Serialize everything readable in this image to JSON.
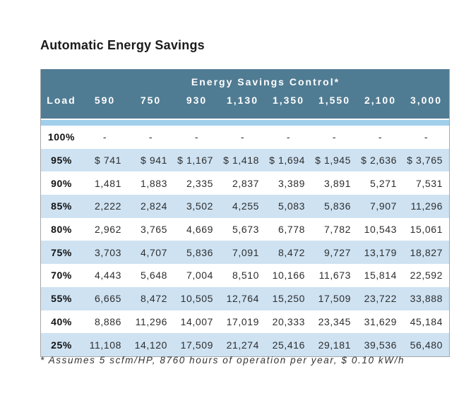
{
  "title": "Automatic Energy Savings",
  "colors": {
    "header_teal": "#507c93",
    "band_blue": "#a0cfec",
    "row_stripe_blue": "#cee2f2",
    "border_gray": "#a6a6a6",
    "header_text": "#ffffff",
    "body_text": "#2e2e2e"
  },
  "chart_data": {
    "type": "table",
    "title": "Automatic Energy Savings",
    "group_header": "Energy Savings Control*",
    "columns": [
      "Load",
      "590",
      "750",
      "930",
      "1,130",
      "1,350",
      "1,550",
      "2,100",
      "3,000"
    ],
    "rows": [
      {
        "load": "100%",
        "values": [
          "-",
          "-",
          "-",
          "-",
          "-",
          "-",
          "-",
          "-"
        ]
      },
      {
        "load": "95%",
        "values": [
          "$ 741",
          "$ 941",
          "$ 1,167",
          "$ 1,418",
          "$ 1,694",
          "$ 1,945",
          "$ 2,636",
          "$ 3,765"
        ]
      },
      {
        "load": "90%",
        "values": [
          "1,481",
          "1,883",
          "2,335",
          "2,837",
          "3,389",
          "3,891",
          "5,271",
          "7,531"
        ]
      },
      {
        "load": "85%",
        "values": [
          "2,222",
          "2,824",
          "3,502",
          "4,255",
          "5,083",
          "5,836",
          "7,907",
          "11,296"
        ]
      },
      {
        "load": "80%",
        "values": [
          "2,962",
          "3,765",
          "4,669",
          "5,673",
          "6,778",
          "7,782",
          "10,543",
          "15,061"
        ]
      },
      {
        "load": "75%",
        "values": [
          "3,703",
          "4,707",
          "5,836",
          "7,091",
          "8,472",
          "9,727",
          "13,179",
          "18,827"
        ]
      },
      {
        "load": "70%",
        "values": [
          "4,443",
          "5,648",
          "7,004",
          "8,510",
          "10,166",
          "11,673",
          "15,814",
          "22,592"
        ]
      },
      {
        "load": "55%",
        "values": [
          "6,665",
          "8,472",
          "10,505",
          "12,764",
          "15,250",
          "17,509",
          "23,722",
          "33,888"
        ]
      },
      {
        "load": "40%",
        "values": [
          "8,886",
          "11,296",
          "14,007",
          "17,019",
          "20,333",
          "23,345",
          "31,629",
          "45,184"
        ]
      },
      {
        "load": "25%",
        "values": [
          "11,108",
          "14,120",
          "17,509",
          "21,274",
          "25,416",
          "29,181",
          "39,536",
          "56,480"
        ]
      }
    ],
    "footnote": "* Assumes 5 scfm/HP, 8760 hours of operation per year, $ 0.10 kW/h"
  }
}
